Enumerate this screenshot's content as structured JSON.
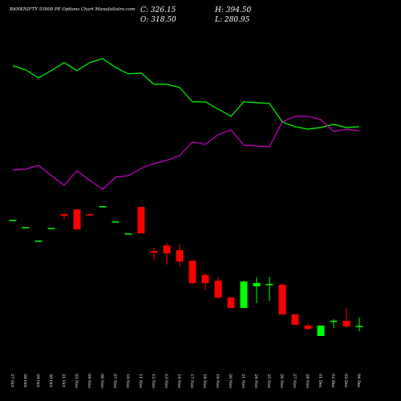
{
  "header": {
    "title": "BANKNIFTY 53000 PE Options Chart MunafaSutra.com",
    "stats": [
      "C: 326.15",
      "O: 318.50",
      "H: 394.50",
      "L: 280.95"
    ]
  },
  "chart_data": [
    {
      "type": "candlestick",
      "up_color": "#00ff00",
      "down_color": "#ff0000",
      "ylim": [
        200,
        1400
      ],
      "categories": [
        "27 Oct",
        "28 Oct",
        "29 Oct",
        "30 Oct",
        "31 Oct",
        "03 Nov",
        "04 Nov",
        "06 Nov",
        "07 Nov",
        "10 Nov",
        "11 Nov",
        "12 Nov",
        "13 Nov",
        "14 Nov",
        "17 Nov",
        "18 Nov",
        "19 Nov",
        "20 Nov",
        "21 Nov",
        "24 Nov",
        "25 Nov",
        "26 Nov",
        "27 Nov",
        "28 Nov",
        "01 Dec",
        "02 Dec",
        "03 Dec",
        "04 Dec"
      ],
      "open": [
        1209,
        1149,
        1036,
        1142,
        1256,
        1296,
        1256,
        1323,
        1196,
        1096,
        1316,
        949,
        996,
        956,
        869,
        749,
        702,
        562,
        475,
        655,
        668,
        668,
        421,
        328,
        241,
        361,
        368,
        318.5
      ],
      "close": [
        1209,
        1149,
        1036,
        1142,
        1243,
        1129,
        1249,
        1323,
        1196,
        1096,
        1096,
        935,
        929,
        862,
        682,
        682,
        562,
        475,
        695,
        682,
        675,
        421,
        334,
        301,
        328,
        368,
        321,
        326.15
      ],
      "high": [
        1209,
        1149,
        1036,
        1142,
        1263,
        1296,
        1256,
        1323,
        1196,
        1096,
        1316,
        976,
        1016,
        1009,
        869,
        762,
        729,
        562,
        702,
        729,
        735,
        675,
        421,
        348,
        328,
        381,
        475,
        394.5
      ],
      "low": [
        1209,
        1149,
        1036,
        1142,
        1209,
        1129,
        1243,
        1323,
        1196,
        1096,
        1096,
        869,
        835,
        822,
        668,
        622,
        548,
        475,
        475,
        515,
        535,
        415,
        334,
        288,
        241,
        308,
        308,
        280.95
      ]
    },
    {
      "type": "line",
      "ylim": [
        0,
        100
      ],
      "series": [
        {
          "color": "#00ff00",
          "values": [
            84,
            81.5,
            76.5,
            81,
            86,
            81,
            86,
            88.5,
            83,
            79,
            79.5,
            72.5,
            72.5,
            70.5,
            61.5,
            61.5,
            57,
            52.5,
            61.5,
            61,
            60.5,
            49,
            46,
            44.5,
            45.5,
            47.5,
            45.5,
            46
          ]
        },
        {
          "color": "#cc00cc",
          "values": [
            19,
            19.5,
            22,
            15.5,
            9.5,
            18.5,
            12.5,
            7,
            14.5,
            15.5,
            20,
            23,
            25,
            28,
            36.5,
            35,
            41,
            44,
            34.5,
            34,
            33.5,
            49,
            52.5,
            52.5,
            50.5,
            43,
            44.5,
            43.5
          ]
        }
      ]
    }
  ]
}
